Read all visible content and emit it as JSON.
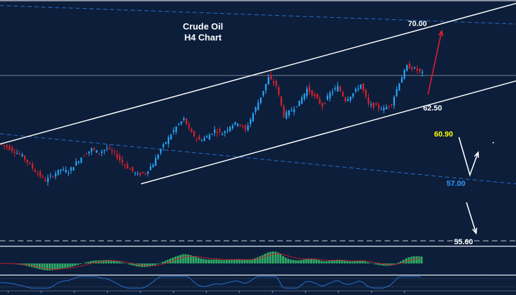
{
  "chart_data": {
    "type": "candlestick",
    "title": "Crude Oil",
    "subtitle": "H4 Chart",
    "closes": [
      59.0,
      58.6,
      58.2,
      57.4,
      56.6,
      56.0,
      56.5,
      57.0,
      56.8,
      57.6,
      58.3,
      58.8,
      58.5,
      58.9,
      58.4,
      57.6,
      57.0,
      56.5,
      56.7,
      57.5,
      58.8,
      59.8,
      60.8,
      61.5,
      60.2,
      59.6,
      59.9,
      60.5,
      60.2,
      60.9,
      61.2,
      60.5,
      62.0,
      63.5,
      65.2,
      64.5,
      61.8,
      62.3,
      63.0,
      64.2,
      63.5,
      62.7,
      63.8,
      64.4,
      63.2,
      63.8,
      64.6,
      62.8,
      62.6,
      62.4,
      62.9,
      64.8,
      66.2,
      66.0,
      65.6
    ],
    "levels": [
      {
        "label": "70.00",
        "value": 70.0,
        "color": "#ffffff"
      },
      {
        "label": "62.50",
        "value": 62.5,
        "color": "#ffffff"
      },
      {
        "label": "60.90",
        "value": 60.9,
        "color": "#ffff00"
      },
      {
        "label": "57.00",
        "value": 57.0,
        "color": "#3399ff"
      },
      {
        "label": "55.60",
        "value": 55.6,
        "color": "#ffffff"
      }
    ],
    "indicators": [
      "MACD histogram with signal line",
      "oscillator"
    ],
    "colors": {
      "background": "#0c1e3a",
      "up_candle": "#2aa8ff",
      "down_candle": "#e0202a",
      "channel": "#ffffff",
      "dashed_trend": "#2a6fd0",
      "macd_hist": "#2faa66",
      "macd_signal": "#c0202a",
      "oscillator": "#2a6fd0",
      "forecast_arrow_up": "#e0202a",
      "forecast_arrow_alt": "#ffffff"
    }
  }
}
